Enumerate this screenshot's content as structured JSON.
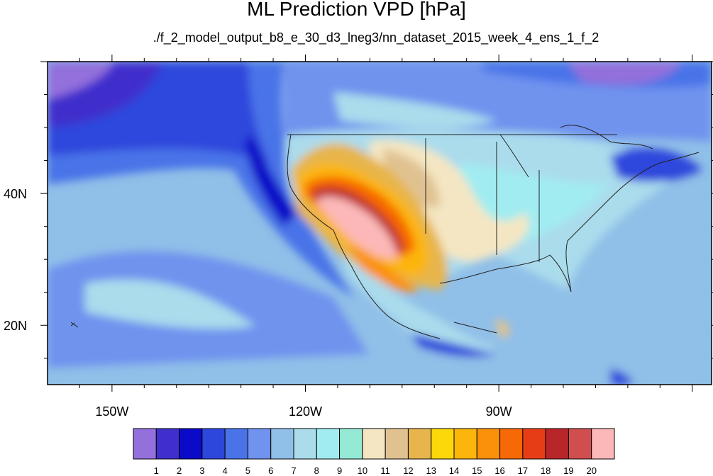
{
  "chart_data": {
    "type": "heatmap",
    "title": "ML Prediction VPD [hPa]",
    "subtitle": "./f_2_model_output_b8_e_30_d3_lneg3/nn_dataset_2015_week_4_ens_1_f_2",
    "lon_range": [
      -160,
      -57
    ],
    "lat_range": [
      11,
      60
    ],
    "x_ticks": [
      {
        "value": -150,
        "label": "150W"
      },
      {
        "value": -120,
        "label": "120W"
      },
      {
        "value": -90,
        "label": "90W"
      }
    ],
    "y_ticks": [
      {
        "value": 40,
        "label": "40N"
      },
      {
        "value": 20,
        "label": "20N"
      }
    ],
    "colorbar": {
      "levels": [
        "1",
        "2",
        "3",
        "4",
        "5",
        "6",
        "7",
        "8",
        "9",
        "10",
        "11",
        "12",
        "13",
        "14",
        "15",
        "16",
        "17",
        "18",
        "19",
        "20"
      ],
      "colors": [
        "#9370db",
        "#3f2fcc",
        "#0a0ac8",
        "#2d46dc",
        "#4a73e8",
        "#6f93ee",
        "#90bfe8",
        "#aadcec",
        "#a1ecf1",
        "#95ead5",
        "#f4e6c2",
        "#e0c291",
        "#e7b54b",
        "#fcd80a",
        "#fcb50a",
        "#fb900a",
        "#f76806",
        "#e73d17",
        "#b8262a",
        "#d14e4e",
        "#fcb8b8"
      ]
    },
    "legend_placement": "bottom",
    "grid": false
  }
}
